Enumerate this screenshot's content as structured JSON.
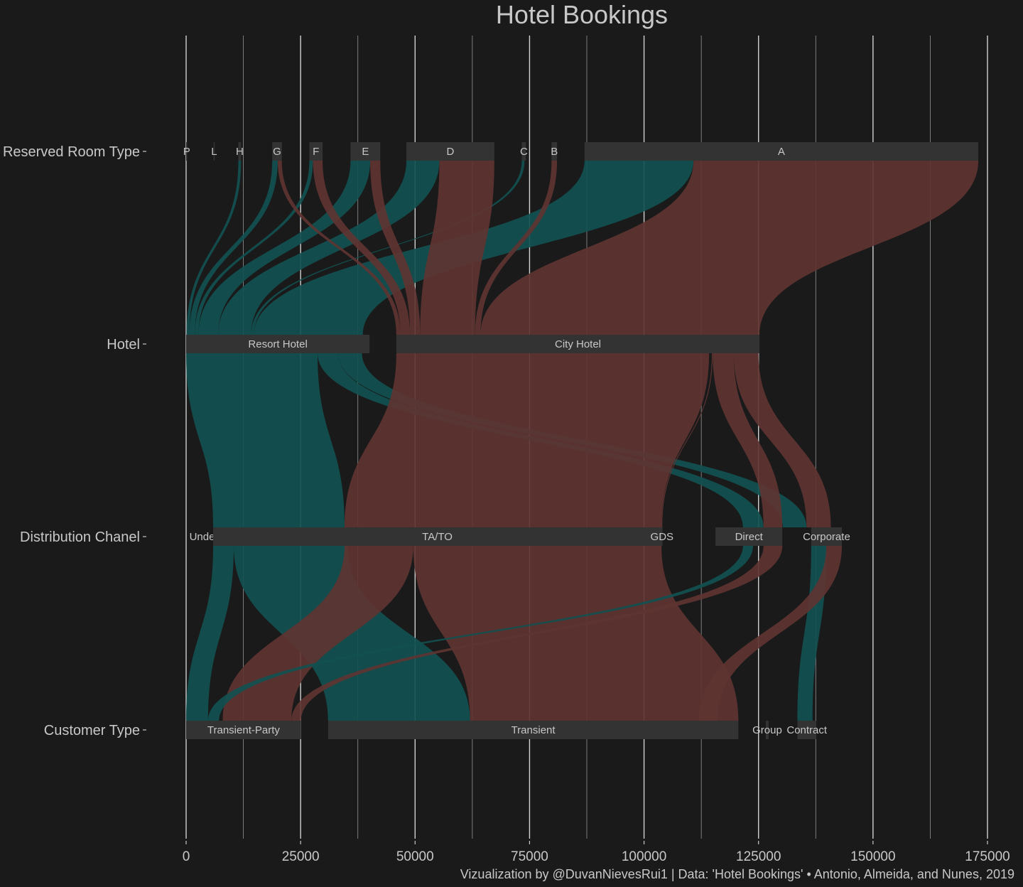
{
  "chart_data": {
    "type": "alluvial",
    "title": "Hotel Bookings",
    "caption": "Vizualization by @DuvanNievesRui1 | Data: 'Hotel Bookings' • Antonio, Almeida, and Nunes, 2019",
    "x_ticks": [
      "0",
      "25000",
      "50000",
      "75000",
      "100000",
      "125000",
      "150000",
      "175000"
    ],
    "x_range": [
      0,
      175000
    ],
    "grid": true,
    "colors": {
      "background": "#1a1a1a",
      "node": "#333333",
      "resort": "#125050",
      "city": "#5e3432",
      "text": "#c8c8c8",
      "gridline": "#e6e6e6"
    },
    "axes": [
      {
        "label": "Reserved Room Type",
        "nodes": [
          {
            "name": "P",
            "start": 0,
            "end": 12
          },
          {
            "name": "L",
            "start": 6000,
            "end": 6006
          },
          {
            "name": "H",
            "start": 11400,
            "end": 12000
          },
          {
            "name": "G",
            "start": 18800,
            "end": 20900
          },
          {
            "name": "F",
            "start": 26900,
            "end": 29800
          },
          {
            "name": "E",
            "start": 35900,
            "end": 42400
          },
          {
            "name": "D",
            "start": 48100,
            "end": 67300
          },
          {
            "name": "C",
            "start": 73300,
            "end": 74200
          },
          {
            "name": "B",
            "start": 79800,
            "end": 81000
          },
          {
            "name": "A",
            "start": 87000,
            "end": 173000
          }
        ]
      },
      {
        "label": "Hotel",
        "nodes": [
          {
            "name": "Resort Hotel",
            "start": 0,
            "end": 40060
          },
          {
            "name": "City Hotel",
            "start": 45900,
            "end": 125230
          }
        ]
      },
      {
        "label": "Distribution Chanel",
        "nodes": [
          {
            "name": "Undefined",
            "start": 5900,
            "end": 5905
          },
          {
            "name": "TA/TO",
            "start": 5900,
            "end": 103800
          },
          {
            "name": "GDS",
            "start": 103800,
            "end": 104000
          },
          {
            "name": "Direct",
            "start": 115600,
            "end": 130200
          },
          {
            "name": "Corporate",
            "start": 136500,
            "end": 143200
          }
        ]
      },
      {
        "label": "Customer Type",
        "nodes": [
          {
            "name": "Transient-Party",
            "start": 0,
            "end": 25100
          },
          {
            "name": "Transient",
            "start": 31000,
            "end": 120600
          },
          {
            "name": "Group",
            "start": 126600,
            "end": 127200
          },
          {
            "name": "Contract",
            "start": 133500,
            "end": 137600
          }
        ]
      }
    ],
    "flows": [
      {
        "hotel": "Resort Hotel",
        "from": [
          0,
          0,
          12
        ],
        "to": [
          1,
          0,
          12
        ]
      },
      {
        "hotel": "Resort Hotel",
        "from": [
          0,
          11400,
          12000
        ],
        "to": [
          1,
          100,
          700
        ]
      },
      {
        "hotel": "Resort Hotel",
        "from": [
          0,
          18800,
          20000
        ],
        "to": [
          1,
          700,
          1900
        ]
      },
      {
        "hotel": "Resort Hotel",
        "from": [
          0,
          26900,
          27700
        ],
        "to": [
          1,
          1900,
          2700
        ]
      },
      {
        "hotel": "Resort Hotel",
        "from": [
          0,
          35900,
          40200
        ],
        "to": [
          1,
          2700,
          7000
        ]
      },
      {
        "hotel": "Resort Hotel",
        "from": [
          0,
          48100,
          55300
        ],
        "to": [
          1,
          7000,
          14200
        ]
      },
      {
        "hotel": "Resort Hotel",
        "from": [
          0,
          73300,
          73900
        ],
        "to": [
          1,
          14200,
          14800
        ]
      },
      {
        "hotel": "Resort Hotel",
        "from": [
          0,
          87000,
          110800
        ],
        "to": [
          1,
          14800,
          38600
        ]
      },
      {
        "hotel": "City Hotel",
        "from": [
          0,
          20000,
          20900
        ],
        "to": [
          1,
          45900,
          46800
        ]
      },
      {
        "hotel": "City Hotel",
        "from": [
          0,
          27700,
          29800
        ],
        "to": [
          1,
          46800,
          48900
        ]
      },
      {
        "hotel": "City Hotel",
        "from": [
          0,
          40200,
          42400
        ],
        "to": [
          1,
          48900,
          51100
        ]
      },
      {
        "hotel": "City Hotel",
        "from": [
          0,
          55300,
          67300
        ],
        "to": [
          1,
          51100,
          63100
        ]
      },
      {
        "hotel": "City Hotel",
        "from": [
          0,
          79800,
          81000
        ],
        "to": [
          1,
          63100,
          64300
        ]
      },
      {
        "hotel": "City Hotel",
        "from": [
          0,
          110800,
          173000
        ],
        "to": [
          1,
          64300,
          125230
        ]
      },
      {
        "hotel": "Resort Hotel",
        "from": [
          1,
          0,
          28700
        ],
        "to": [
          2,
          5900,
          34600
        ]
      },
      {
        "hotel": "Resort Hotel",
        "from": [
          1,
          28700,
          33200
        ],
        "to": [
          2,
          121600,
          126100
        ]
      },
      {
        "hotel": "Resort Hotel",
        "from": [
          1,
          33200,
          38400
        ],
        "to": [
          2,
          130300,
          135500
        ]
      },
      {
        "hotel": "City Hotel",
        "from": [
          1,
          45900,
          114200
        ],
        "to": [
          2,
          34600,
          103800
        ]
      },
      {
        "hotel": "City Hotel",
        "from": [
          1,
          114800,
          115000
        ],
        "to": [
          2,
          103800,
          104000
        ]
      },
      {
        "hotel": "City Hotel",
        "from": [
          1,
          119600,
          125000
        ],
        "to": [
          2,
          135500,
          140800
        ]
      },
      {
        "hotel": "City Hotel",
        "from": [
          1,
          115000,
          119600
        ],
        "to": [
          2,
          126100,
          130200
        ]
      },
      {
        "hotel": "Resort Hotel",
        "from": [
          2,
          5900,
          10400
        ],
        "to": [
          3,
          0,
          4800
        ]
      },
      {
        "hotel": "Resort Hotel",
        "from": [
          2,
          10400,
          35200
        ],
        "to": [
          3,
          31000,
          62000
        ]
      },
      {
        "hotel": "City Hotel",
        "from": [
          2,
          34600,
          49600
        ],
        "to": [
          3,
          8000,
          23000
        ]
      },
      {
        "hotel": "City Hotel",
        "from": [
          2,
          49600,
          103800
        ],
        "to": [
          3,
          62000,
          120600
        ]
      },
      {
        "hotel": "Resort Hotel",
        "from": [
          2,
          121600,
          123800
        ],
        "to": [
          3,
          4800,
          7200
        ]
      },
      {
        "hotel": "City Hotel",
        "from": [
          2,
          126100,
          130200
        ],
        "to": [
          3,
          23000,
          25100
        ]
      },
      {
        "hotel": "Resort Hotel",
        "from": [
          2,
          136500,
          139800
        ],
        "to": [
          3,
          133500,
          136800
        ]
      },
      {
        "hotel": "City Hotel",
        "from": [
          2,
          139800,
          143200
        ],
        "to": [
          3,
          112000,
          116000
        ]
      }
    ]
  }
}
